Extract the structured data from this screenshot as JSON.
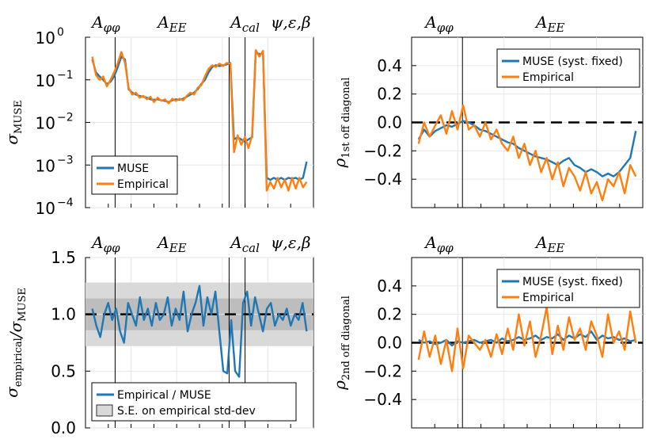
{
  "chart_data": [
    {
      "type": "line",
      "panel": "top-left",
      "ylabel": "σ_MUSE",
      "yscale": "log",
      "ylim": [
        0.0001,
        1
      ],
      "yticks": [
        "10^0",
        "10^-1",
        "10^-2",
        "10^-3",
        "10^-4"
      ],
      "top_labels": [
        "Aφφ",
        "AEE",
        "Acal",
        "ψ,ε,β"
      ],
      "legend": [
        "MUSE",
        "Empirical"
      ],
      "colors": {
        "MUSE": "#1f77b4",
        "Empirical": "#ff7f0e"
      },
      "xlim": [
        0,
        100
      ],
      "vlines": [
        13,
        63,
        70
      ],
      "series": [
        {
          "name": "MUSE",
          "values": [
            0.3,
            0.15,
            0.12,
            0.1,
            0.08,
            0.09,
            0.12,
            0.2,
            0.35,
            0.3,
            0.06,
            0.05,
            0.045,
            0.042,
            0.04,
            0.038,
            0.035,
            0.034,
            0.035,
            0.033,
            0.032,
            0.03,
            0.033,
            0.035,
            0.034,
            0.036,
            0.04,
            0.045,
            0.05,
            0.06,
            0.08,
            0.1,
            0.15,
            0.2,
            0.22,
            0.21,
            0.22,
            0.23,
            0.25,
            0.004,
            0.0045,
            0.004,
            0.0035,
            0.004,
            0.0045,
            0.45,
            0.4,
            0.42,
            0.0005,
            0.00045,
            0.0005,
            0.00045,
            0.0005,
            0.00045,
            0.0005,
            0.00048,
            0.0005,
            0.00045,
            0.0005,
            0.0012
          ]
        },
        {
          "name": "Empirical",
          "values": [
            0.35,
            0.13,
            0.1,
            0.12,
            0.07,
            0.1,
            0.15,
            0.25,
            0.45,
            0.25,
            0.065,
            0.045,
            0.05,
            0.038,
            0.042,
            0.035,
            0.04,
            0.03,
            0.038,
            0.032,
            0.035,
            0.028,
            0.036,
            0.032,
            0.036,
            0.033,
            0.042,
            0.05,
            0.045,
            0.065,
            0.075,
            0.12,
            0.18,
            0.22,
            0.2,
            0.24,
            0.21,
            0.25,
            0.24,
            0.002,
            0.005,
            0.003,
            0.0045,
            0.0025,
            0.005,
            0.5,
            0.35,
            0.48,
            0.00025,
            0.0004,
            0.00028,
            0.0005,
            0.0003,
            0.00045,
            0.00025,
            0.0005,
            0.00028,
            0.0005,
            0.0003,
            0.0004
          ]
        }
      ]
    },
    {
      "type": "line",
      "panel": "top-right",
      "ylabel": "ρ_1st off diagonal",
      "ylim": [
        -0.6,
        0.6
      ],
      "yticks": [
        "0.4",
        "0.2",
        "0.0",
        "-0.2",
        "-0.4"
      ],
      "top_labels": [
        "Aφφ",
        "AEE"
      ],
      "legend": [
        "MUSE (syst. fixed)",
        "Empirical"
      ],
      "xlim": [
        0,
        100
      ],
      "vlines": [
        22
      ],
      "hline": 0.0,
      "series": [
        {
          "name": "MUSE",
          "values": [
            -0.12,
            -0.05,
            -0.1,
            -0.06,
            -0.04,
            -0.02,
            -0.03,
            -0.01,
            0.01,
            0.0,
            -0.02,
            -0.05,
            -0.06,
            -0.08,
            -0.1,
            -0.12,
            -0.14,
            -0.15,
            -0.18,
            -0.2,
            -0.22,
            -0.24,
            -0.25,
            -0.26,
            -0.28,
            -0.3,
            -0.27,
            -0.25,
            -0.3,
            -0.32,
            -0.35,
            -0.33,
            -0.35,
            -0.38,
            -0.36,
            -0.38,
            -0.35,
            -0.3,
            -0.25,
            -0.06
          ]
        },
        {
          "name": "Empirical",
          "values": [
            -0.15,
            0.0,
            -0.1,
            -0.02,
            0.05,
            -0.08,
            0.08,
            -0.05,
            0.12,
            -0.05,
            -0.02,
            -0.1,
            0.0,
            -0.12,
            -0.05,
            -0.15,
            -0.2,
            -0.1,
            -0.25,
            -0.15,
            -0.3,
            -0.2,
            -0.35,
            -0.25,
            -0.4,
            -0.28,
            -0.45,
            -0.32,
            -0.38,
            -0.48,
            -0.35,
            -0.5,
            -0.42,
            -0.55,
            -0.4,
            -0.45,
            -0.35,
            -0.5,
            -0.3,
            -0.38
          ]
        }
      ]
    },
    {
      "type": "line",
      "panel": "bottom-left",
      "ylabel": "σ_empirical/σ_MUSE",
      "ylim": [
        0.0,
        1.5
      ],
      "yticks": [
        "1.5",
        "1.0",
        "0.5",
        "0.0"
      ],
      "top_labels": [
        "Aφφ",
        "AEE",
        "Acal",
        "ψ,ε,β"
      ],
      "legend": [
        "Empirical / MUSE",
        "S.E. on empirical std-dev"
      ],
      "xlim": [
        0,
        100
      ],
      "vlines": [
        13,
        63,
        70
      ],
      "hline": 1.0,
      "bands": [
        [
          0.72,
          1.28
        ],
        [
          0.86,
          1.14
        ]
      ],
      "series": [
        {
          "name": "Empirical / MUSE",
          "values": [
            1.05,
            0.9,
            0.8,
            1.0,
            1.1,
            0.95,
            1.05,
            0.85,
            0.75,
            1.1,
            1.0,
            0.9,
            1.15,
            0.95,
            1.05,
            0.9,
            1.1,
            0.95,
            1.0,
            1.15,
            0.9,
            1.05,
            0.95,
            1.2,
            0.85,
            1.0,
            1.1,
            1.25,
            0.9,
            1.15,
            1.0,
            1.2,
            0.85,
            0.5,
            0.48,
            0.95,
            0.5,
            0.45,
            1.1,
            1.2,
            0.9,
            1.15,
            1.0,
            0.85,
            1.05,
            1.1,
            0.9,
            1.0,
            0.95,
            1.05,
            0.9,
            1.0,
            0.95,
            1.1,
            0.85
          ]
        }
      ]
    },
    {
      "type": "line",
      "panel": "bottom-right",
      "ylabel": "ρ_2nd off diagonal",
      "ylim": [
        -0.6,
        0.6
      ],
      "yticks": [
        "0.4",
        "0.2",
        "0.0",
        "-0.2",
        "-0.4"
      ],
      "top_labels": [
        "Aφφ",
        "AEE"
      ],
      "legend": [
        "MUSE (syst. fixed)",
        "Empirical"
      ],
      "xlim": [
        0,
        100
      ],
      "vlines": [
        22
      ],
      "hline": 0.0,
      "series": [
        {
          "name": "MUSE",
          "values": [
            0.02,
            0.0,
            0.01,
            -0.01,
            0.0,
            0.02,
            -0.02,
            0.01,
            0.0,
            0.01,
            0.02,
            0.0,
            0.01,
            0.02,
            0.0,
            0.03,
            0.01,
            0.02,
            0.04,
            0.02,
            0.03,
            0.05,
            0.02,
            0.04,
            0.03,
            0.06,
            0.02,
            0.05,
            0.03,
            0.06,
            0.04,
            0.08,
            0.02,
            0.05,
            0.03,
            0.04,
            0.02,
            0.03,
            0.01,
            0.02
          ]
        },
        {
          "name": "Empirical",
          "values": [
            -0.12,
            0.08,
            -0.1,
            0.05,
            -0.15,
            0.02,
            -0.2,
            0.1,
            -0.18,
            0.05,
            0.0,
            -0.05,
            0.02,
            -0.1,
            0.06,
            -0.08,
            0.1,
            -0.05,
            0.2,
            -0.02,
            0.15,
            -0.1,
            0.05,
            0.25,
            -0.08,
            0.12,
            -0.05,
            0.18,
            0.02,
            0.1,
            -0.05,
            0.15,
            0.05,
            -0.1,
            0.2,
            0.0,
            0.08,
            -0.05,
            0.22,
            0.0
          ]
        }
      ]
    }
  ]
}
